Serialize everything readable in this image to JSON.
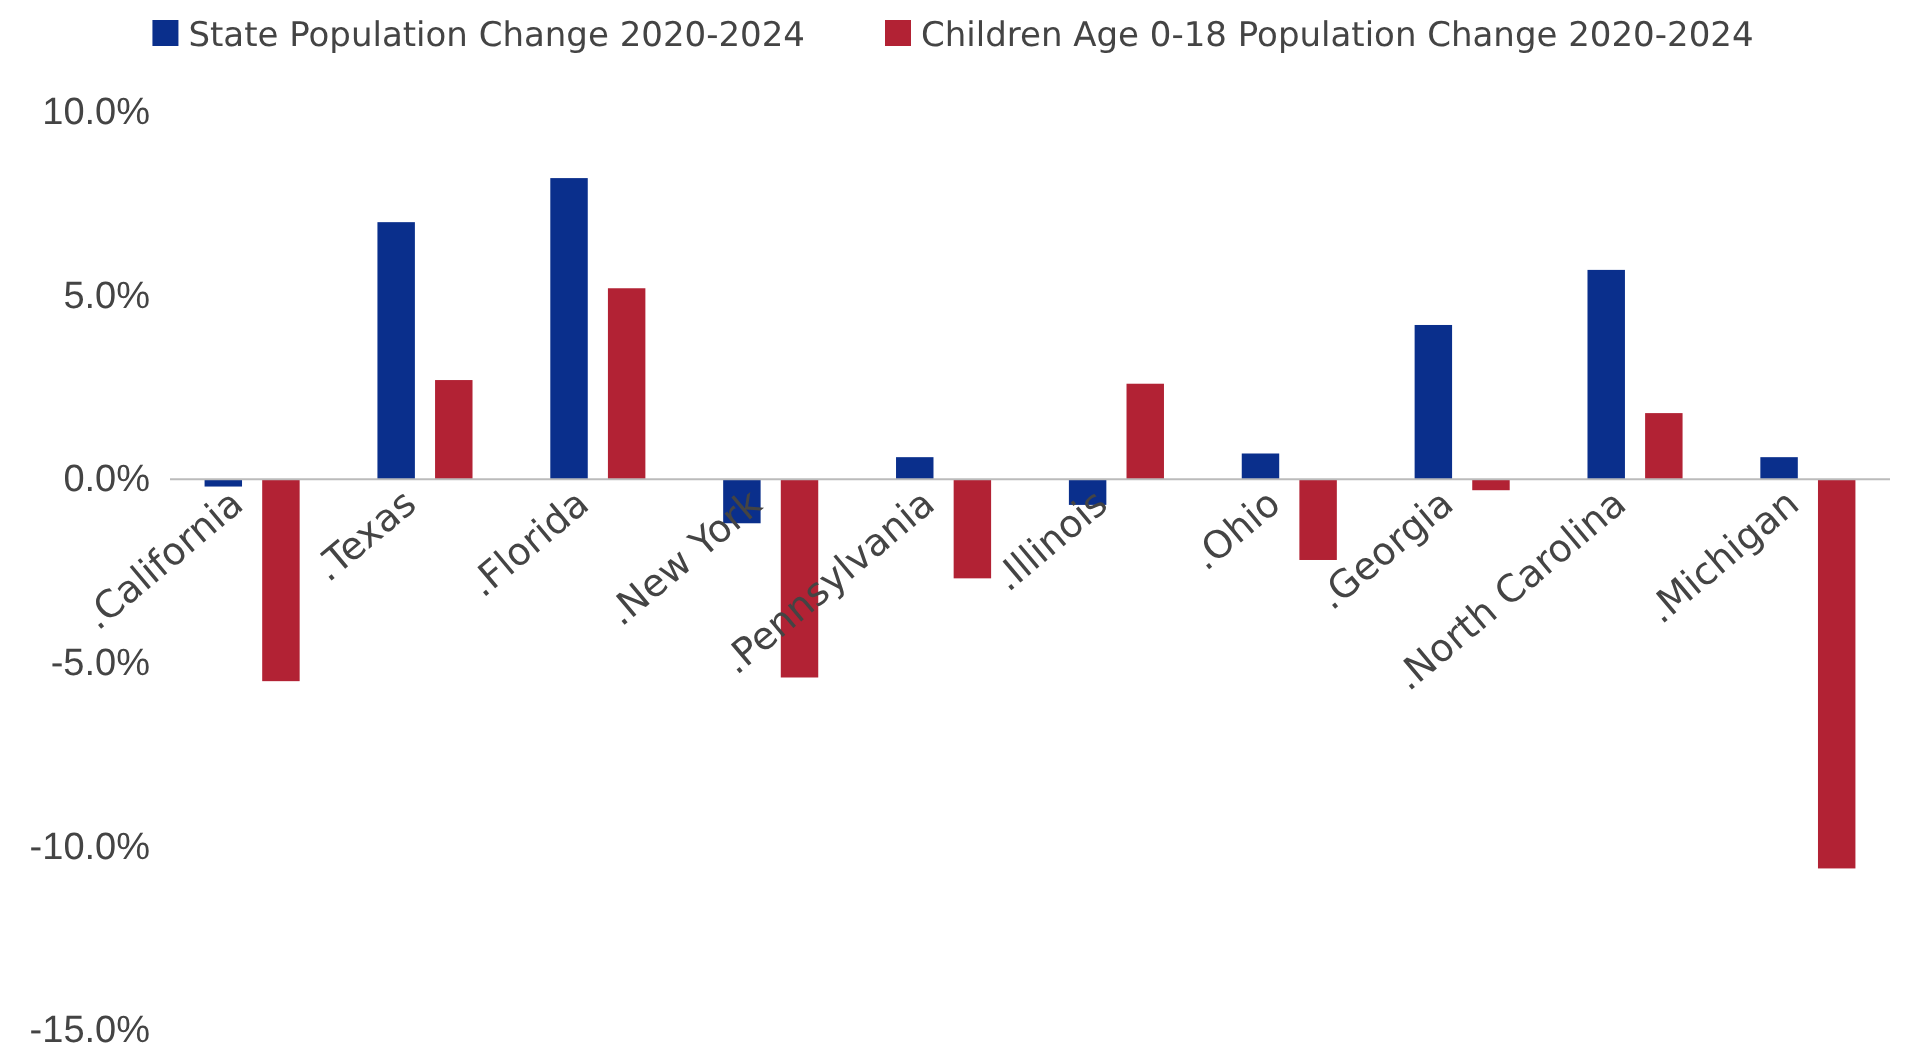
{
  "chart_data": {
    "type": "bar",
    "categories": [
      ".California",
      ".Texas",
      ".Florida",
      ".New York",
      ".Pennsylvania",
      ".Illinois",
      ".Ohio",
      ".Georgia",
      ".North Carolina",
      ".Michigan"
    ],
    "series": [
      {
        "name": "State Population Change 2020-2024",
        "color": "#0a2f8c",
        "values": [
          -0.2,
          7.0,
          8.2,
          -1.2,
          0.6,
          -0.7,
          0.7,
          4.2,
          5.7,
          0.6
        ]
      },
      {
        "name": "Children Age 0-18 Population Change 2020-2024",
        "color": "#b22234",
        "values": [
          -5.5,
          2.7,
          5.2,
          -5.4,
          -2.7,
          2.6,
          -2.2,
          -0.3,
          1.8,
          -10.6
        ]
      }
    ],
    "ylim": [
      -15,
      10
    ],
    "yticks": [
      {
        "value": -15,
        "label": "-15.0%"
      },
      {
        "value": -10,
        "label": "-10.0%"
      },
      {
        "value": -5,
        "label": "-5.0%"
      },
      {
        "value": 0,
        "label": "0.0%"
      },
      {
        "value": 5,
        "label": "5.0%"
      },
      {
        "value": 10,
        "label": "10.0%"
      }
    ],
    "grid": false,
    "legend": "top"
  }
}
